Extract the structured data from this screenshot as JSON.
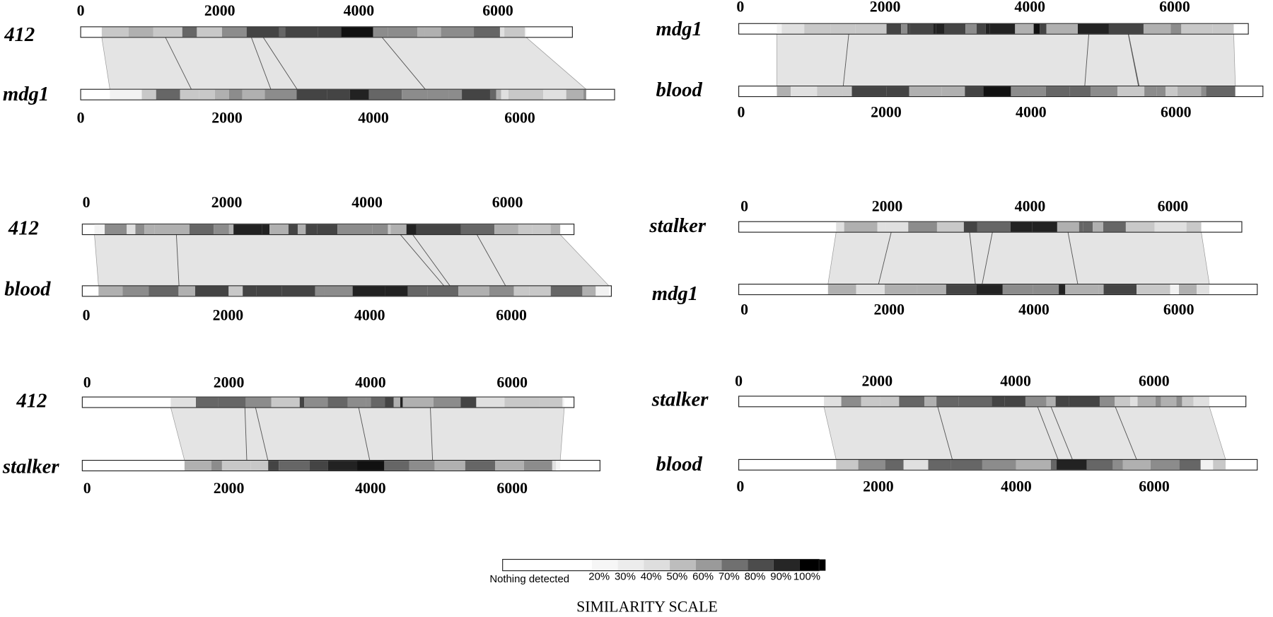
{
  "panels": [
    {
      "top": {
        "label": "412",
        "ticks": [
          0,
          2000,
          4000,
          6000
        ]
      },
      "bottom": {
        "label": "mdg1",
        "ticks": [
          0,
          2000,
          4000,
          6000
        ]
      }
    },
    {
      "top": {
        "label": "mdg1",
        "ticks": [
          0,
          2000,
          4000,
          6000
        ]
      },
      "bottom": {
        "label": "blood",
        "ticks": [
          0,
          2000,
          4000,
          6000
        ]
      }
    },
    {
      "top": {
        "label": "412",
        "ticks": [
          0,
          2000,
          4000,
          6000
        ]
      },
      "bottom": {
        "label": "blood",
        "ticks": [
          0,
          2000,
          4000,
          6000
        ]
      }
    },
    {
      "top": {
        "label": "stalker",
        "ticks": [
          0,
          2000,
          4000,
          6000
        ]
      },
      "bottom": {
        "label": "mdg1",
        "ticks": [
          0,
          2000,
          4000,
          6000
        ]
      }
    },
    {
      "top": {
        "label": "412",
        "ticks": [
          0,
          2000,
          4000,
          6000
        ]
      },
      "bottom": {
        "label": "stalker",
        "ticks": [
          0,
          2000,
          4000,
          6000
        ]
      }
    },
    {
      "top": {
        "label": "stalker",
        "ticks": [
          0,
          2000,
          4000,
          6000
        ]
      },
      "bottom": {
        "label": "blood",
        "ticks": [
          0,
          2000,
          4000,
          6000
        ]
      }
    }
  ],
  "scale": {
    "nothing_label": "Nothing detected",
    "levels": [
      "20%",
      "30%",
      "40%",
      "50%",
      "60%",
      "70%",
      "80%",
      "90%",
      "100%"
    ],
    "title": "SIMILARITY SCALE"
  }
}
